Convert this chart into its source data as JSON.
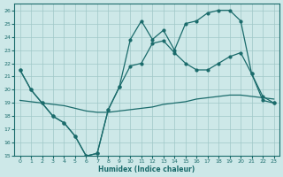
{
  "xlabel": "Humidex (Indice chaleur)",
  "xlim": [
    -0.5,
    23.5
  ],
  "ylim": [
    15,
    26.5
  ],
  "yticks": [
    15,
    16,
    17,
    18,
    19,
    20,
    21,
    22,
    23,
    24,
    25,
    26
  ],
  "xticks": [
    0,
    1,
    2,
    3,
    4,
    5,
    6,
    7,
    8,
    9,
    10,
    11,
    12,
    13,
    14,
    15,
    16,
    17,
    18,
    19,
    20,
    21,
    22,
    23
  ],
  "bg_color": "#cde8e8",
  "grid_color": "#a0c8c8",
  "line_color": "#1a6b6b",
  "line1_x": [
    0,
    1,
    2,
    3,
    4,
    5,
    6,
    7,
    8,
    9,
    10,
    11,
    12,
    13,
    14,
    15,
    16,
    17,
    18,
    19,
    20,
    21,
    22,
    23
  ],
  "line1_y": [
    21.5,
    20.0,
    19.0,
    18.0,
    17.5,
    16.5,
    15.0,
    15.2,
    18.5,
    20.2,
    23.8,
    25.2,
    23.8,
    24.5,
    23.0,
    25.0,
    25.2,
    25.8,
    26.0,
    26.0,
    25.2,
    21.2,
    19.2,
    19.0
  ],
  "line2_x": [
    0,
    1,
    2,
    3,
    4,
    5,
    6,
    7,
    8,
    9,
    10,
    11,
    12,
    13,
    14,
    15,
    16,
    17,
    18,
    19,
    20,
    21,
    22,
    23
  ],
  "line2_y": [
    21.5,
    20.0,
    19.0,
    18.0,
    17.5,
    16.5,
    15.0,
    15.2,
    18.5,
    20.2,
    21.8,
    22.0,
    23.5,
    23.7,
    22.8,
    22.0,
    21.5,
    21.5,
    22.0,
    22.5,
    22.8,
    21.2,
    19.5,
    19.0
  ],
  "line3_x": [
    0,
    1,
    2,
    3,
    4,
    5,
    6,
    7,
    8,
    9,
    10,
    11,
    12,
    13,
    14,
    15,
    16,
    17,
    18,
    19,
    20,
    21,
    22,
    23
  ],
  "line3_y": [
    19.2,
    19.1,
    19.0,
    18.9,
    18.8,
    18.6,
    18.4,
    18.3,
    18.3,
    18.4,
    18.5,
    18.6,
    18.7,
    18.9,
    19.0,
    19.1,
    19.3,
    19.4,
    19.5,
    19.6,
    19.6,
    19.5,
    19.4,
    19.3
  ]
}
